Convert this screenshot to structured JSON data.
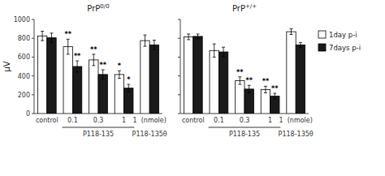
{
  "chart_data": [
    {
      "type": "bar",
      "title": "PrP0/0",
      "y_label": "μV",
      "categories": [
        "control",
        "0.1",
        "0.3",
        "1",
        "1  (nmole)"
      ],
      "annotations": [
        {
          "text": "P118-135",
          "under": [
            "0.1",
            "0.3",
            "1"
          ]
        },
        {
          "text": "P118-135θ",
          "under": [
            "1  (nmole)"
          ]
        }
      ],
      "series": [
        {
          "color": "#ffffff",
          "values": [
            825,
            710,
            570,
            415,
            775
          ],
          "error": [
            50,
            80,
            60,
            40,
            60
          ],
          "significance": [
            null,
            "**",
            "**",
            "*",
            null
          ]
        },
        {
          "color": "#1a1a1a",
          "values": [
            805,
            500,
            415,
            270,
            730
          ],
          "error": [
            50,
            60,
            50,
            40,
            50
          ],
          "significance": [
            null,
            "**",
            "**",
            "*",
            null
          ]
        }
      ],
      "ylim": [
        0,
        1000
      ],
      "yticks": [
        0,
        200,
        400,
        600,
        800,
        1000
      ]
    },
    {
      "type": "bar",
      "title": "PrP+/+",
      "categories": [
        "control",
        "0.1",
        "0.3",
        "1",
        "1  (nmole)"
      ],
      "annotations": [
        {
          "text": "P118-135",
          "under": [
            "0.1",
            "0.3",
            "1"
          ]
        },
        {
          "text": "P118-135θ",
          "under": [
            "1  (nmole)"
          ]
        }
      ],
      "series": [
        {
          "name": "1day p-i",
          "color": "#ffffff",
          "values": [
            815,
            670,
            350,
            255,
            870
          ],
          "error": [
            30,
            70,
            40,
            35,
            30
          ],
          "significance": [
            null,
            null,
            "**",
            "**",
            null
          ]
        },
        {
          "name": "7days p-i",
          "color": "#1a1a1a",
          "values": [
            820,
            655,
            260,
            185,
            730
          ],
          "error": [
            25,
            50,
            40,
            30,
            25
          ],
          "significance": [
            null,
            null,
            "**",
            "**",
            null
          ]
        }
      ],
      "ylim": [
        0,
        1000
      ],
      "yticks": [
        0,
        200,
        400,
        600,
        800,
        1000
      ],
      "tick_labels": "x",
      "legend": "right"
    }
  ]
}
